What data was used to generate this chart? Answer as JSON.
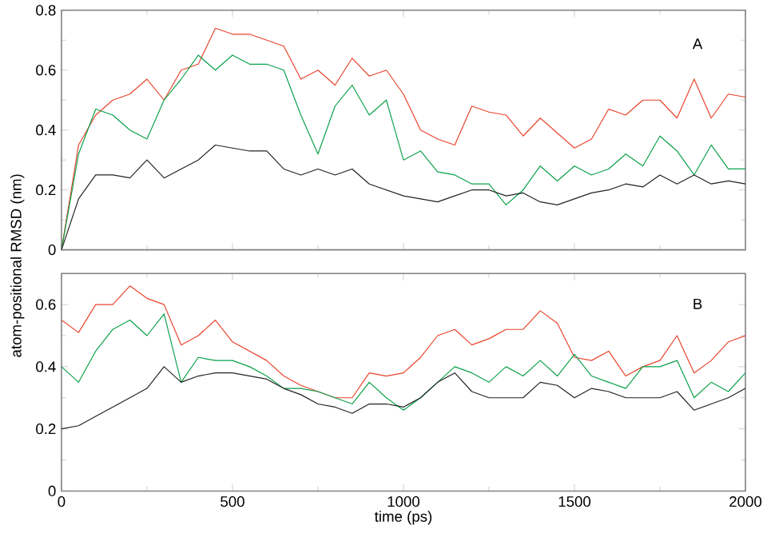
{
  "chart_data": [
    {
      "type": "line",
      "ylabel": "atom-positional RMSD (nm)",
      "annotations": [
        "A"
      ],
      "xlim": [
        0,
        2000
      ],
      "xticks": [
        0,
        500,
        1000,
        1500,
        2000
      ],
      "ylim": [
        0,
        0.8
      ],
      "yticks": [
        0,
        0.2,
        0.4,
        0.6,
        0.8
      ],
      "tick_labels": "y",
      "grid": false,
      "x": [
        0,
        50,
        100,
        150,
        200,
        250,
        300,
        350,
        400,
        450,
        500,
        550,
        600,
        650,
        700,
        750,
        800,
        850,
        900,
        950,
        1000,
        1050,
        1100,
        1150,
        1200,
        1250,
        1300,
        1350,
        1400,
        1450,
        1500,
        1550,
        1600,
        1650,
        1700,
        1750,
        1800,
        1850,
        1900,
        1950,
        2000
      ],
      "series": [
        {
          "color": "#e8432b",
          "values": [
            0,
            0.35,
            0.45,
            0.5,
            0.52,
            0.57,
            0.5,
            0.6,
            0.62,
            0.74,
            0.72,
            0.72,
            0.7,
            0.68,
            0.57,
            0.6,
            0.55,
            0.64,
            0.58,
            0.6,
            0.52,
            0.4,
            0.37,
            0.35,
            0.48,
            0.46,
            0.45,
            0.38,
            0.44,
            0.39,
            0.34,
            0.37,
            0.47,
            0.45,
            0.5,
            0.5,
            0.44,
            0.57,
            0.44,
            0.52,
            0.51
          ]
        },
        {
          "color": "#0aa04a",
          "values": [
            0,
            0.32,
            0.47,
            0.45,
            0.4,
            0.37,
            0.5,
            0.57,
            0.65,
            0.6,
            0.65,
            0.62,
            0.62,
            0.6,
            0.45,
            0.32,
            0.48,
            0.55,
            0.45,
            0.5,
            0.3,
            0.33,
            0.26,
            0.25,
            0.22,
            0.22,
            0.15,
            0.2,
            0.28,
            0.23,
            0.28,
            0.25,
            0.27,
            0.32,
            0.28,
            0.38,
            0.33,
            0.25,
            0.35,
            0.27,
            0.27
          ]
        },
        {
          "color": "#222222",
          "values": [
            0,
            0.17,
            0.25,
            0.25,
            0.24,
            0.3,
            0.24,
            0.27,
            0.3,
            0.35,
            0.34,
            0.33,
            0.33,
            0.27,
            0.25,
            0.27,
            0.25,
            0.27,
            0.22,
            0.2,
            0.18,
            0.17,
            0.16,
            0.18,
            0.2,
            0.2,
            0.18,
            0.19,
            0.16,
            0.15,
            0.17,
            0.19,
            0.2,
            0.22,
            0.21,
            0.25,
            0.22,
            0.25,
            0.22,
            0.23,
            0.22
          ]
        }
      ]
    },
    {
      "type": "line",
      "xlabel": "time (ps)",
      "annotations": [
        "B"
      ],
      "xlim": [
        0,
        2000
      ],
      "xticks": [
        0,
        500,
        1000,
        1500,
        2000
      ],
      "ylim": [
        0,
        0.7
      ],
      "yticks": [
        0,
        0.2,
        0.4,
        0.6
      ],
      "grid": false,
      "x": [
        0,
        50,
        100,
        150,
        200,
        250,
        300,
        350,
        400,
        450,
        500,
        550,
        600,
        650,
        700,
        750,
        800,
        850,
        900,
        950,
        1000,
        1050,
        1100,
        1150,
        1200,
        1250,
        1300,
        1350,
        1400,
        1450,
        1500,
        1550,
        1600,
        1650,
        1700,
        1750,
        1800,
        1850,
        1900,
        1950,
        2000
      ],
      "series": [
        {
          "color": "#e8432b",
          "values": [
            0.55,
            0.51,
            0.6,
            0.6,
            0.66,
            0.62,
            0.6,
            0.47,
            0.5,
            0.55,
            0.48,
            0.45,
            0.42,
            0.37,
            0.34,
            0.32,
            0.3,
            0.3,
            0.38,
            0.37,
            0.38,
            0.43,
            0.5,
            0.52,
            0.47,
            0.49,
            0.52,
            0.52,
            0.58,
            0.54,
            0.43,
            0.42,
            0.45,
            0.37,
            0.4,
            0.42,
            0.5,
            0.38,
            0.42,
            0.48,
            0.5
          ]
        },
        {
          "color": "#0aa04a",
          "values": [
            0.4,
            0.35,
            0.45,
            0.52,
            0.55,
            0.5,
            0.57,
            0.35,
            0.43,
            0.42,
            0.42,
            0.4,
            0.37,
            0.33,
            0.33,
            0.32,
            0.3,
            0.28,
            0.35,
            0.3,
            0.26,
            0.3,
            0.35,
            0.4,
            0.38,
            0.35,
            0.4,
            0.37,
            0.42,
            0.37,
            0.44,
            0.37,
            0.35,
            0.33,
            0.4,
            0.4,
            0.42,
            0.3,
            0.35,
            0.32,
            0.38
          ]
        },
        {
          "color": "#222222",
          "values": [
            0.2,
            0.21,
            0.24,
            0.27,
            0.3,
            0.33,
            0.4,
            0.35,
            0.37,
            0.38,
            0.38,
            0.37,
            0.36,
            0.33,
            0.31,
            0.28,
            0.27,
            0.25,
            0.28,
            0.28,
            0.27,
            0.3,
            0.35,
            0.38,
            0.32,
            0.3,
            0.3,
            0.3,
            0.35,
            0.34,
            0.3,
            0.33,
            0.32,
            0.3,
            0.3,
            0.3,
            0.32,
            0.26,
            0.28,
            0.3,
            0.33
          ]
        }
      ]
    }
  ]
}
